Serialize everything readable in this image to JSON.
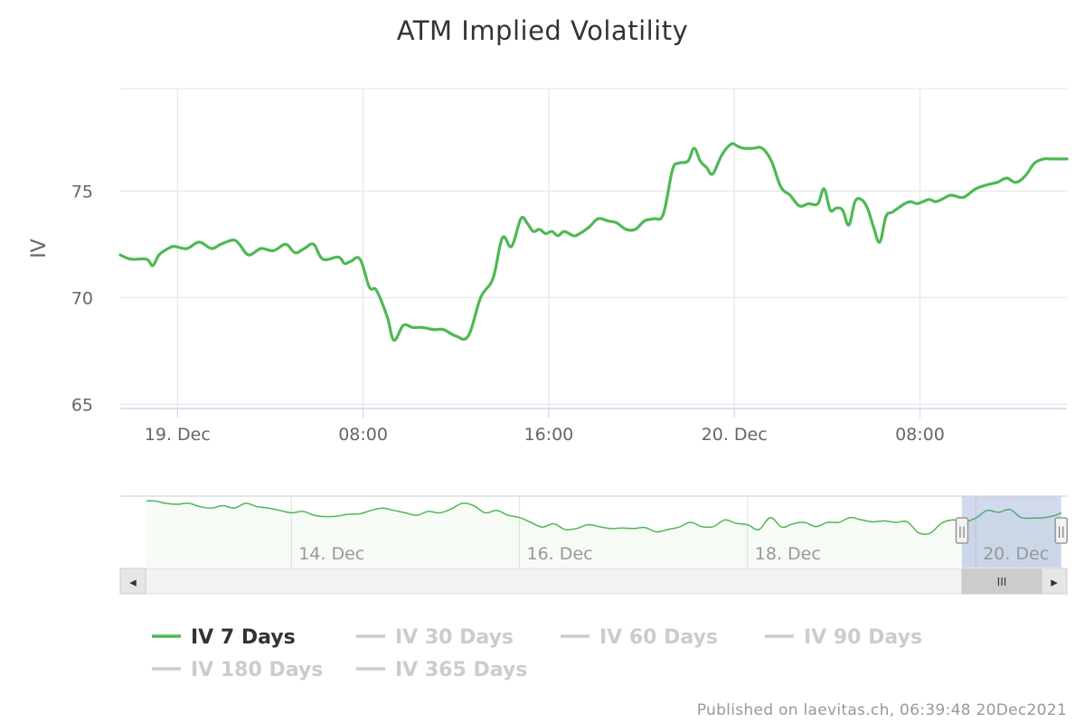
{
  "chart_data": {
    "type": "line",
    "title": "ATM Implied Volatility",
    "xlabel": "",
    "ylabel": "IV",
    "xlim": [
      -2.85,
      27.75
    ],
    "ylim": [
      64.8,
      79.8
    ],
    "y_ticks": [
      65,
      70,
      75
    ],
    "x_ticks": [
      {
        "value": -1.0,
        "label": "19. Dec"
      },
      {
        "value": 5.0,
        "label": "08:00"
      },
      {
        "value": 11.0,
        "label": "16:00"
      },
      {
        "value": 17.0,
        "label": "20. Dec"
      },
      {
        "value": 23.0,
        "label": "08:00"
      }
    ],
    "x_unit": "hours from 00:00 on 19 Dec (UTC)",
    "series": [
      {
        "name": "IV 7 Days",
        "color": "#4fb854",
        "visible": true,
        "x": [
          -2.85,
          -2.5,
          -2.0,
          -1.8,
          -1.6,
          -1.3,
          -1.1,
          -0.7,
          -0.3,
          0.1,
          0.4,
          0.8,
          1.0,
          1.3,
          1.7,
          2.1,
          2.5,
          2.8,
          3.1,
          3.4,
          3.7,
          4.2,
          4.4,
          4.6,
          4.9,
          5.2,
          5.4,
          5.6,
          5.8,
          6.0,
          6.3,
          6.6,
          6.9,
          7.3,
          7.6,
          8.0,
          8.4,
          8.8,
          9.2,
          9.5,
          9.8,
          10.1,
          10.3,
          10.5,
          10.7,
          10.9,
          11.1,
          11.3,
          11.5,
          11.8,
          12.0,
          12.3,
          12.6,
          12.9,
          13.2,
          13.5,
          13.8,
          14.1,
          14.4,
          14.7,
          15.0,
          15.2,
          15.5,
          15.7,
          15.9,
          16.1,
          16.3,
          16.6,
          16.9,
          17.1,
          17.3,
          17.6,
          17.9,
          18.2,
          18.5,
          18.8,
          19.1,
          19.4,
          19.7,
          19.9,
          20.1,
          20.3,
          20.5,
          20.7,
          20.9,
          21.1,
          21.3,
          21.5,
          21.7,
          21.9,
          22.1,
          22.3,
          22.5,
          22.7,
          22.9,
          23.1,
          23.3,
          23.5,
          23.7,
          24.0,
          24.4,
          24.8,
          25.2,
          25.5,
          25.8,
          26.1,
          26.4,
          26.7,
          27.0,
          27.2,
          27.4,
          27.6,
          27.75
        ],
        "y": [
          72.0,
          71.8,
          71.8,
          71.5,
          72.0,
          72.3,
          72.4,
          72.3,
          72.6,
          72.3,
          72.5,
          72.7,
          72.5,
          72.0,
          72.3,
          72.2,
          72.5,
          72.1,
          72.3,
          72.5,
          71.8,
          71.9,
          71.6,
          71.7,
          71.8,
          70.5,
          70.4,
          69.8,
          69.0,
          68.0,
          68.7,
          68.6,
          68.6,
          68.5,
          68.5,
          68.2,
          68.2,
          70.0,
          70.9,
          72.8,
          72.4,
          73.7,
          73.5,
          73.1,
          73.2,
          73.0,
          73.1,
          72.9,
          73.1,
          72.9,
          73.0,
          73.3,
          73.7,
          73.6,
          73.5,
          73.2,
          73.2,
          73.6,
          73.7,
          73.9,
          76.0,
          76.3,
          76.4,
          77.0,
          76.4,
          76.1,
          75.8,
          76.7,
          77.2,
          77.1,
          77.0,
          77.0,
          77.0,
          76.4,
          75.2,
          74.8,
          74.3,
          74.4,
          74.4,
          75.1,
          74.1,
          74.2,
          74.1,
          73.4,
          74.5,
          74.6,
          74.2,
          73.3,
          72.6,
          73.8,
          74.0,
          74.2,
          74.4,
          74.5,
          74.4,
          74.5,
          74.6,
          74.5,
          74.6,
          74.8,
          74.7,
          75.1,
          75.3,
          75.4,
          75.6,
          75.4,
          75.7,
          76.3,
          76.5,
          76.5,
          76.5,
          76.5,
          76.5
        ]
      },
      {
        "name": "IV 30 Days",
        "color": "#cccccc",
        "visible": false
      },
      {
        "name": "IV 60 Days",
        "color": "#cccccc",
        "visible": false
      },
      {
        "name": "IV 90 Days",
        "color": "#cccccc",
        "visible": false
      },
      {
        "name": "IV 180 Days",
        "color": "#cccccc",
        "visible": false
      },
      {
        "name": "IV 365 Days",
        "color": "#cccccc",
        "visible": false
      }
    ],
    "navigator": {
      "x_unit": "days from 00:00 on 13 Dec",
      "xlim": [
        -0.5,
        7.8
      ],
      "ylim": [
        65,
        80
      ],
      "selected_range": [
        6.88,
        7.75
      ],
      "x_ticks": [
        {
          "value": 1.0,
          "label": "14. Dec"
        },
        {
          "value": 3.0,
          "label": "16. Dec"
        },
        {
          "value": 5.0,
          "label": "18. Dec"
        },
        {
          "value": 7.0,
          "label": "20. Dec"
        }
      ],
      "x": [
        -0.27,
        -0.2,
        -0.1,
        0.0,
        0.1,
        0.2,
        0.3,
        0.4,
        0.5,
        0.6,
        0.7,
        0.8,
        0.9,
        1.0,
        1.1,
        1.2,
        1.3,
        1.4,
        1.5,
        1.6,
        1.7,
        1.8,
        1.9,
        2.0,
        2.1,
        2.2,
        2.3,
        2.4,
        2.5,
        2.6,
        2.7,
        2.8,
        2.9,
        3.0,
        3.1,
        3.2,
        3.3,
        3.4,
        3.5,
        3.6,
        3.7,
        3.8,
        3.9,
        4.0,
        4.1,
        4.2,
        4.3,
        4.4,
        4.5,
        4.6,
        4.7,
        4.8,
        4.9,
        5.0,
        5.1,
        5.2,
        5.3,
        5.4,
        5.5,
        5.6,
        5.7,
        5.8,
        5.9,
        6.0,
        6.1,
        6.2,
        6.3,
        6.4,
        6.5,
        6.6,
        6.7,
        6.8,
        6.9,
        7.0,
        7.1,
        7.2,
        7.3,
        7.4,
        7.5,
        7.6,
        7.7,
        7.75
      ],
      "y": [
        79.0,
        79.0,
        78.5,
        78.3,
        78.5,
        77.8,
        77.5,
        78.0,
        77.5,
        78.5,
        77.8,
        77.5,
        77.0,
        76.5,
        76.8,
        76.0,
        75.7,
        75.8,
        76.2,
        76.3,
        77.0,
        77.5,
        77.0,
        76.5,
        76.0,
        76.8,
        76.5,
        77.3,
        78.5,
        78.0,
        76.5,
        77.0,
        76.0,
        75.5,
        74.5,
        73.5,
        74.2,
        73.0,
        73.2,
        74.0,
        73.6,
        73.2,
        73.3,
        73.2,
        73.4,
        72.5,
        73.0,
        73.5,
        74.5,
        73.6,
        73.6,
        75.0,
        74.3,
        74.0,
        73.0,
        75.5,
        73.5,
        74.2,
        74.5,
        73.6,
        74.5,
        74.5,
        75.5,
        75.0,
        74.6,
        74.8,
        74.5,
        74.6,
        72.3,
        72.2,
        74.3,
        75.0,
        74.6,
        75.4,
        77.0,
        76.6,
        77.2,
        75.5,
        75.4,
        75.5,
        76.0,
        76.5
      ]
    }
  },
  "navigator": {
    "handle_glyph": "||",
    "thumb_glyph": "III",
    "left_arrow_glyph": "◂",
    "right_arrow_glyph": "▸"
  },
  "credits": "Published on laevitas.ch, 06:39:48 20Dec2021"
}
